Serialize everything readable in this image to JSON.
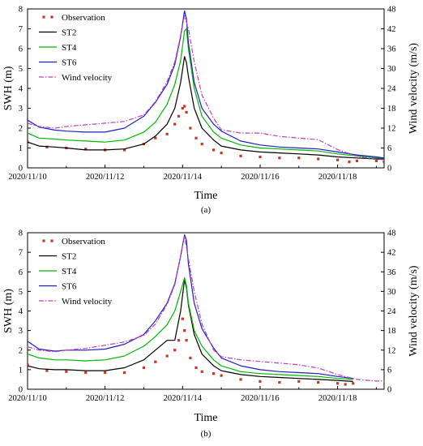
{
  "chart_data": [
    {
      "panel_label": "(a)",
      "type": "line",
      "xlabel": "Time",
      "ylabel": "SWH (m)",
      "y2label": "Wind velocity (m/s)",
      "xlim": [
        0,
        9.2
      ],
      "ylim": [
        0,
        8
      ],
      "y2lim": [
        0,
        48
      ],
      "xticks": [
        0,
        2,
        4,
        6,
        8
      ],
      "xtick_labels": [
        "2020/11/10",
        "2020/11/12",
        "2020/11/14",
        "2020/11/16",
        "2020/11/18"
      ],
      "yticks": [
        0,
        1,
        2,
        3,
        4,
        5,
        6,
        7,
        8
      ],
      "y2ticks": [
        0,
        6,
        12,
        18,
        24,
        30,
        36,
        42,
        48
      ],
      "legend_position": "top-left",
      "series": [
        {
          "name": "Observation",
          "kind": "marker",
          "color": "#c0392b",
          "axis": "left",
          "x": [
            0.0,
            0.5,
            1.0,
            1.5,
            2.0,
            2.5,
            3.0,
            3.3,
            3.6,
            3.8,
            3.9,
            4.0,
            4.05,
            4.1,
            4.2,
            4.35,
            4.5,
            4.8,
            5.0,
            5.5,
            6.0,
            6.5,
            7.0,
            7.5,
            8.0,
            8.3,
            8.5,
            9.0,
            9.2
          ],
          "y": [
            1.3,
            1.05,
            1.0,
            0.95,
            0.9,
            0.9,
            1.2,
            1.5,
            1.7,
            2.2,
            2.6,
            3.0,
            3.1,
            2.8,
            2.0,
            1.5,
            1.2,
            0.9,
            0.75,
            0.6,
            0.55,
            0.5,
            0.5,
            0.45,
            0.4,
            0.3,
            0.35,
            0.35,
            0.3
          ]
        },
        {
          "name": "ST2",
          "kind": "line",
          "color": "#000000",
          "axis": "left",
          "x": [
            0.0,
            0.3,
            0.7,
            1.0,
            1.5,
            2.0,
            2.5,
            3.0,
            3.3,
            3.6,
            3.8,
            3.95,
            4.05,
            4.1,
            4.15,
            4.3,
            4.5,
            4.8,
            5.0,
            5.5,
            6.0,
            6.5,
            7.0,
            7.5,
            8.0,
            8.5,
            9.0,
            9.2
          ],
          "y": [
            1.3,
            1.1,
            1.05,
            1.0,
            0.9,
            0.9,
            0.95,
            1.2,
            1.6,
            2.2,
            3.0,
            4.3,
            5.6,
            5.3,
            4.6,
            3.0,
            2.0,
            1.4,
            1.1,
            0.9,
            0.8,
            0.75,
            0.7,
            0.65,
            0.55,
            0.5,
            0.45,
            0.45
          ]
        },
        {
          "name": "ST4",
          "kind": "line",
          "color": "#00b800",
          "axis": "left",
          "x": [
            0.0,
            0.3,
            0.7,
            1.0,
            1.5,
            2.0,
            2.5,
            3.0,
            3.3,
            3.6,
            3.8,
            3.95,
            4.05,
            4.1,
            4.15,
            4.3,
            4.5,
            4.8,
            5.0,
            5.5,
            6.0,
            6.5,
            7.0,
            7.5,
            8.0,
            8.5,
            9.0,
            9.2
          ],
          "y": [
            1.75,
            1.5,
            1.45,
            1.4,
            1.35,
            1.3,
            1.4,
            1.8,
            2.3,
            3.2,
            4.2,
            5.4,
            6.9,
            7.0,
            6.0,
            4.0,
            2.6,
            1.8,
            1.5,
            1.15,
            1.0,
            0.95,
            0.9,
            0.85,
            0.7,
            0.6,
            0.5,
            0.5
          ]
        },
        {
          "name": "ST6",
          "kind": "line",
          "color": "#1f1fbf",
          "axis": "left",
          "x": [
            0.0,
            0.3,
            0.7,
            1.0,
            1.5,
            2.0,
            2.5,
            3.0,
            3.3,
            3.6,
            3.8,
            3.95,
            4.05,
            4.1,
            4.15,
            4.3,
            4.5,
            4.8,
            5.0,
            5.5,
            6.0,
            6.5,
            7.0,
            7.5,
            8.0,
            8.5,
            9.0,
            9.2
          ],
          "y": [
            2.4,
            2.05,
            1.9,
            1.85,
            1.8,
            1.8,
            2.0,
            2.6,
            3.3,
            4.2,
            5.2,
            6.6,
            7.9,
            7.5,
            6.3,
            4.3,
            3.0,
            2.2,
            1.85,
            1.35,
            1.15,
            1.05,
            1.0,
            0.95,
            0.8,
            0.65,
            0.55,
            0.5
          ]
        },
        {
          "name": "Wind velocity",
          "kind": "dashdot",
          "color": "#c040c0",
          "axis": "right",
          "x": [
            0.0,
            0.3,
            0.7,
            1.0,
            1.5,
            2.0,
            2.5,
            3.0,
            3.3,
            3.6,
            3.8,
            3.95,
            4.05,
            4.15,
            4.3,
            4.5,
            4.8,
            5.0,
            5.5,
            6.0,
            6.5,
            7.0,
            7.5,
            8.0,
            8.5,
            9.0,
            9.2
          ],
          "y": [
            13.5,
            12.5,
            12.0,
            12.5,
            13.0,
            13.5,
            14.0,
            16.0,
            20.0,
            26.0,
            32.0,
            40.0,
            46.0,
            42.0,
            32.0,
            22.0,
            15.0,
            11.5,
            10.5,
            10.5,
            9.5,
            9.0,
            8.5,
            5.5,
            3.5,
            2.5,
            2.5
          ]
        }
      ]
    },
    {
      "panel_label": "(b)",
      "type": "line",
      "xlabel": "Time",
      "ylabel": "SWH (m)",
      "y2label": "Wind velocity (m/s)",
      "xlim": [
        0,
        9.2
      ],
      "ylim": [
        0,
        8
      ],
      "y2lim": [
        0,
        48
      ],
      "xticks": [
        0,
        2,
        4,
        6,
        8
      ],
      "xtick_labels": [
        "2020/11/10",
        "2020/11/12",
        "2020/11/14",
        "2020/11/16",
        "2020/11/18"
      ],
      "yticks": [
        0,
        1,
        2,
        3,
        4,
        5,
        6,
        7,
        8
      ],
      "y2ticks": [
        0,
        6,
        12,
        18,
        24,
        30,
        36,
        42,
        48
      ],
      "legend_position": "top-left",
      "series": [
        {
          "name": "Observation",
          "kind": "marker",
          "color": "#c0392b",
          "axis": "left",
          "x": [
            0.0,
            0.5,
            1.0,
            1.5,
            2.0,
            2.5,
            3.0,
            3.3,
            3.6,
            3.8,
            3.9,
            4.0,
            4.05,
            4.1,
            4.2,
            4.35,
            4.5,
            4.8,
            5.0,
            5.5,
            6.0,
            6.5,
            7.0,
            7.5,
            8.0,
            8.2,
            8.4
          ],
          "y": [
            1.25,
            0.95,
            0.9,
            0.85,
            0.85,
            0.85,
            1.1,
            1.4,
            1.7,
            2.0,
            2.5,
            3.6,
            3.0,
            2.5,
            1.6,
            1.1,
            0.9,
            0.8,
            0.7,
            0.5,
            0.4,
            0.35,
            0.4,
            0.35,
            0.3,
            0.25,
            0.3
          ]
        },
        {
          "name": "ST2",
          "kind": "line",
          "color": "#000000",
          "axis": "left",
          "x": [
            0.0,
            0.3,
            0.7,
            1.0,
            1.5,
            2.0,
            2.5,
            3.0,
            3.3,
            3.6,
            3.8,
            3.95,
            4.05,
            4.1,
            4.15,
            4.3,
            4.5,
            4.8,
            5.0,
            5.5,
            6.0,
            6.5,
            7.0,
            7.5,
            8.0,
            8.4
          ],
          "y": [
            1.2,
            1.05,
            1.0,
            1.0,
            0.95,
            0.95,
            1.1,
            1.5,
            2.0,
            2.5,
            2.5,
            4.0,
            5.6,
            5.2,
            4.3,
            2.8,
            1.8,
            1.2,
            0.95,
            0.75,
            0.65,
            0.6,
            0.55,
            0.5,
            0.45,
            0.4
          ]
        },
        {
          "name": "ST4",
          "kind": "line",
          "color": "#00b800",
          "axis": "left",
          "x": [
            0.0,
            0.3,
            0.7,
            1.0,
            1.5,
            2.0,
            2.5,
            3.0,
            3.3,
            3.6,
            3.8,
            3.95,
            4.05,
            4.1,
            4.15,
            4.3,
            4.5,
            4.8,
            5.0,
            5.5,
            6.0,
            6.5,
            7.0,
            7.5,
            8.0,
            8.4
          ],
          "y": [
            1.8,
            1.6,
            1.5,
            1.5,
            1.45,
            1.5,
            1.7,
            2.2,
            2.7,
            3.3,
            4.0,
            5.0,
            5.7,
            5.3,
            4.4,
            3.0,
            2.2,
            1.5,
            1.2,
            0.9,
            0.8,
            0.75,
            0.7,
            0.65,
            0.55,
            0.5
          ]
        },
        {
          "name": "ST6",
          "kind": "line",
          "color": "#1f1fbf",
          "axis": "left",
          "x": [
            0.0,
            0.3,
            0.7,
            1.0,
            1.5,
            2.0,
            2.5,
            3.0,
            3.3,
            3.6,
            3.8,
            3.95,
            4.05,
            4.1,
            4.15,
            4.3,
            4.5,
            4.8,
            5.0,
            5.5,
            6.0,
            6.5,
            7.0,
            7.5,
            8.0,
            8.4
          ],
          "y": [
            2.45,
            2.05,
            1.95,
            2.0,
            2.0,
            2.05,
            2.3,
            2.8,
            3.5,
            4.4,
            5.4,
            6.8,
            7.9,
            7.6,
            6.4,
            4.4,
            3.1,
            2.1,
            1.6,
            1.2,
            1.0,
            0.9,
            0.85,
            0.8,
            0.65,
            0.55
          ]
        },
        {
          "name": "Wind velocity",
          "kind": "dashdot",
          "color": "#c040c0",
          "axis": "right",
          "x": [
            0.0,
            0.3,
            0.7,
            1.0,
            1.5,
            2.0,
            2.5,
            3.0,
            3.3,
            3.6,
            3.8,
            3.95,
            4.05,
            4.15,
            4.3,
            4.5,
            4.8,
            5.0,
            5.5,
            6.0,
            6.5,
            7.0,
            7.5,
            8.0,
            8.5,
            9.0,
            9.2
          ],
          "y": [
            13.0,
            12.0,
            11.5,
            12.0,
            12.5,
            13.5,
            14.5,
            16.5,
            20.0,
            26.0,
            32.0,
            41.0,
            47.0,
            40.0,
            30.0,
            20.0,
            12.0,
            10.0,
            9.0,
            8.5,
            8.0,
            7.5,
            6.5,
            4.5,
            3.0,
            2.5,
            2.5
          ]
        }
      ]
    }
  ]
}
